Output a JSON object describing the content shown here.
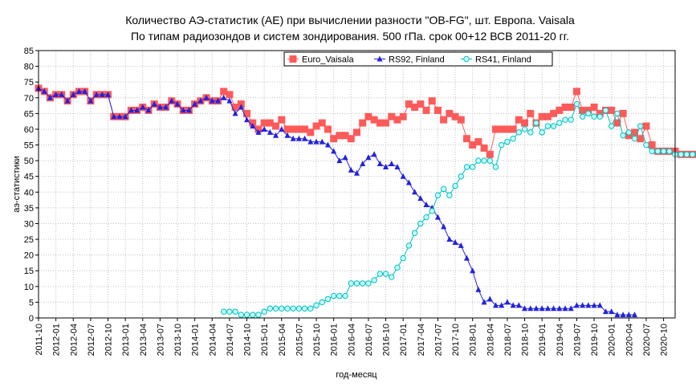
{
  "chart_data": {
    "type": "line",
    "title": [
      "Количество АЭ-статистик (AE) при вычислении разности \"OB-FG\", шт. Европа. Vaisala",
      "По типам радиозондов и систем зондирования. 500 гПа. срок 00+12 ВСВ 2011-20 гг."
    ],
    "xlabel": "год-месяц",
    "ylabel": "аэ-статистики",
    "ylim": [
      0,
      85
    ],
    "yticks": [
      0,
      5,
      10,
      15,
      20,
      25,
      30,
      35,
      40,
      45,
      50,
      55,
      60,
      65,
      70,
      75,
      80,
      85
    ],
    "xrange": [
      "2011-10",
      "2020-12"
    ],
    "xtick_labels": [
      "2011-10",
      "2012-01",
      "2012-04",
      "2012-07",
      "2012-10",
      "2013-01",
      "2013-04",
      "2013-07",
      "2013-10",
      "2014-01",
      "2014-04",
      "2014-07",
      "2014-10",
      "2015-01",
      "2015-04",
      "2015-07",
      "2015-10",
      "2016-01",
      "2016-04",
      "2016-07",
      "2016-10",
      "2017-01",
      "2017-04",
      "2017-07",
      "2017-10",
      "2018-01",
      "2018-04",
      "2018-07",
      "2018-10",
      "2019-01",
      "2019-04",
      "2019-07",
      "2019-10",
      "2020-01",
      "2020-04",
      "2020-07",
      "2020-10"
    ],
    "grid": true,
    "legend_placement": "top-right",
    "series": [
      {
        "name": "Euro_Vaisala",
        "color": "#ff5a5a",
        "line_color": "#ff5a5a",
        "marker": "square",
        "start": "2011-10",
        "values": [
          73,
          72,
          70,
          71,
          71,
          69,
          71,
          72,
          72,
          69,
          71,
          71,
          71,
          64,
          64,
          64,
          66,
          66,
          67,
          66,
          68,
          67,
          67,
          69,
          68,
          66,
          66,
          68,
          69,
          70,
          69,
          69,
          72,
          71,
          67,
          68,
          65,
          62,
          60,
          62,
          62,
          61,
          63,
          60,
          60,
          60,
          60,
          59,
          61,
          62,
          60,
          57,
          58,
          58,
          57,
          59,
          62,
          64,
          63,
          62,
          62,
          64,
          63,
          64,
          68,
          67,
          68,
          66,
          69,
          66,
          63,
          65,
          64,
          63,
          57,
          55,
          56,
          54,
          52,
          60,
          60,
          60,
          60,
          63,
          62,
          65,
          62,
          64,
          64,
          65,
          66,
          67,
          67,
          72,
          66,
          66,
          67,
          65,
          66,
          66,
          62,
          65,
          58,
          59,
          57,
          61,
          55,
          53,
          53,
          53,
          53,
          52,
          52,
          52,
          52,
          52,
          53
        ]
      },
      {
        "name": "RS92, Finland",
        "color": "#2222dd",
        "line_color": "#2222dd",
        "marker": "triangle",
        "start": "2011-10",
        "values": [
          73,
          72,
          70,
          71,
          71,
          69,
          71,
          72,
          72,
          69,
          71,
          71,
          71,
          64,
          64,
          64,
          66,
          66,
          67,
          66,
          68,
          67,
          67,
          69,
          68,
          66,
          66,
          68,
          69,
          70,
          69,
          69,
          70,
          69,
          65,
          67,
          63,
          61,
          59,
          60,
          59,
          58,
          60,
          58,
          57,
          57,
          57,
          56,
          56,
          56,
          55,
          53,
          50,
          51,
          47,
          46,
          49,
          51,
          52,
          49,
          48,
          49,
          48,
          45,
          43,
          40,
          38,
          36,
          35,
          32,
          29,
          25,
          24,
          23,
          19,
          15,
          9,
          5,
          6,
          4,
          4,
          5,
          4,
          4,
          3,
          3,
          3,
          3,
          3,
          3,
          3,
          3,
          3,
          4,
          4,
          4,
          4,
          4,
          2,
          2,
          1,
          1,
          1,
          1
        ]
      },
      {
        "name": "RS41, Finland",
        "color": "#c8ffff",
        "line_color": "#00bfbf",
        "marker": "circle",
        "start": "2014-06",
        "values": [
          2,
          2,
          2,
          1,
          1,
          1,
          1,
          2,
          3,
          3,
          3,
          3,
          3,
          3,
          3,
          3,
          4,
          5,
          6,
          7,
          7,
          7,
          11,
          11,
          11,
          11,
          12,
          14,
          14,
          13,
          16,
          19,
          23,
          27,
          30,
          32,
          34,
          39,
          41,
          39,
          42,
          45,
          48,
          48,
          50,
          50,
          50,
          48,
          55,
          56,
          57,
          59,
          60,
          59,
          62,
          59,
          61,
          61,
          62,
          63,
          63,
          68,
          64,
          65,
          64,
          64,
          66,
          61,
          65,
          58,
          59,
          57,
          61,
          55,
          53,
          53,
          53,
          53,
          52,
          52,
          52,
          52,
          52,
          53
        ]
      }
    ]
  }
}
